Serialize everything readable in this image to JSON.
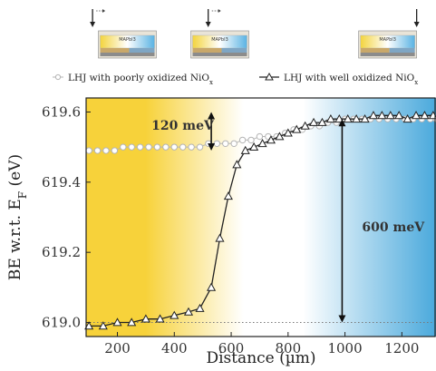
{
  "chart_data": {
    "type": "scatter",
    "xlabel": "Distance (µm)",
    "ylabel": "BE w.r.t. E",
    "ylabel_sub": "F",
    "ylabel_unit": " (eV)",
    "xlim": [
      90,
      1320
    ],
    "ylim": [
      618.96,
      619.64
    ],
    "x_ticks": [
      200,
      400,
      600,
      800,
      1000,
      1200
    ],
    "y_ticks": [
      619.0,
      619.2,
      619.4,
      619.6
    ],
    "x_tick_labels": [
      "200",
      "400",
      "600",
      "800",
      "1000",
      "1200"
    ],
    "y_tick_labels": [
      "619.0",
      "619.2",
      "619.4",
      "619.6"
    ],
    "grid": false,
    "legend_position": "top",
    "background_gradient": {
      "left_color": "#f7d23a",
      "middle_color": "#ffffff",
      "right_color": "#4aa9dc"
    },
    "series": [
      {
        "name": "LHJ with poorly oxidized NiO",
        "name_sub": "x",
        "marker": "circle",
        "color": "#b5b5b5",
        "x": [
          100,
          130,
          160,
          190,
          220,
          250,
          280,
          310,
          340,
          370,
          400,
          430,
          460,
          490,
          520,
          550,
          580,
          610,
          640,
          670,
          700,
          730,
          760,
          790,
          820,
          850,
          880,
          910,
          940,
          970,
          1000,
          1030,
          1060,
          1090,
          1120,
          1150,
          1180,
          1210,
          1240,
          1270,
          1300,
          1320
        ],
        "y": [
          619.49,
          619.49,
          619.49,
          619.49,
          619.5,
          619.5,
          619.5,
          619.5,
          619.5,
          619.5,
          619.5,
          619.5,
          619.5,
          619.5,
          619.51,
          619.51,
          619.51,
          619.51,
          619.52,
          619.52,
          619.53,
          619.53,
          619.53,
          619.54,
          619.55,
          619.55,
          619.56,
          619.56,
          619.57,
          619.57,
          619.58,
          619.58,
          619.58,
          619.58,
          619.58,
          619.58,
          619.58,
          619.58,
          619.58,
          619.58,
          619.58,
          619.58
        ]
      },
      {
        "name": "LHJ with well oxidized NiO",
        "name_sub": "x",
        "marker": "triangle",
        "color": "#222222",
        "x": [
          100,
          150,
          200,
          250,
          300,
          350,
          400,
          450,
          490,
          530,
          560,
          590,
          620,
          650,
          680,
          710,
          740,
          770,
          800,
          830,
          860,
          890,
          920,
          950,
          980,
          1010,
          1040,
          1070,
          1100,
          1130,
          1160,
          1190,
          1220,
          1250,
          1280,
          1310
        ],
        "y": [
          618.99,
          618.99,
          619.0,
          619.0,
          619.01,
          619.01,
          619.02,
          619.03,
          619.04,
          619.1,
          619.24,
          619.36,
          619.45,
          619.49,
          619.5,
          619.51,
          619.52,
          619.53,
          619.54,
          619.55,
          619.56,
          619.57,
          619.57,
          619.58,
          619.58,
          619.58,
          619.58,
          619.58,
          619.59,
          619.59,
          619.59,
          619.59,
          619.58,
          619.59,
          619.59,
          619.59
        ]
      }
    ],
    "reference_line": {
      "y": 619.0,
      "style": "dotted"
    },
    "annotations": [
      {
        "text": "120 meV",
        "x": 320,
        "y": 619.55,
        "arrow_x": 530,
        "arrow_from": 619.49,
        "arrow_to": 619.6
      },
      {
        "text": "600 meV",
        "x": 1060,
        "y": 619.26,
        "arrow_x": 990,
        "arrow_from": 619.0,
        "arrow_to": 619.58
      }
    ],
    "device_schematics": [
      {
        "label": "MAPbI3",
        "center_x": 235,
        "probe_offset": -0.6
      },
      {
        "label": "MAPbI3",
        "center_x": 560,
        "probe_offset": -0.2
      },
      {
        "label": "MAPbI3",
        "center_x": 1150,
        "probe_offset": 0.5
      }
    ]
  }
}
